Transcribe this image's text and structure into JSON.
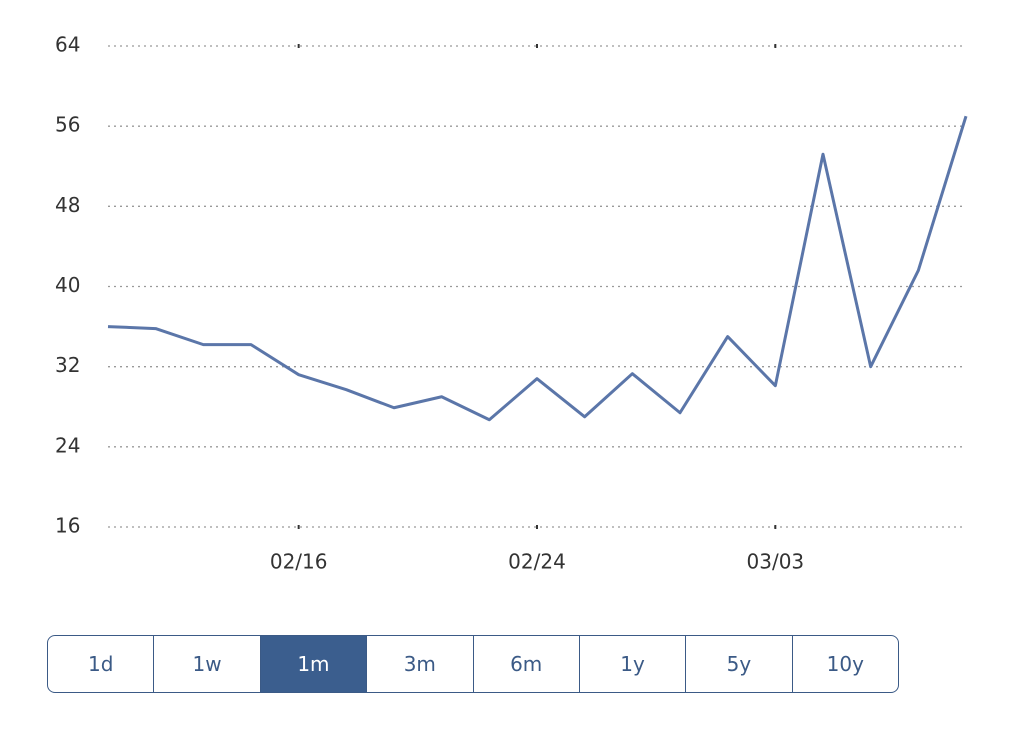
{
  "chart_data": {
    "type": "line",
    "categories": [
      null,
      null,
      null,
      null,
      "02/16",
      null,
      null,
      null,
      null,
      "02/24",
      null,
      null,
      null,
      null,
      "03/03",
      null,
      null,
      null,
      null
    ],
    "series": [
      {
        "color": "#5b76a9",
        "values": [
          36.0,
          35.8,
          34.2,
          34.2,
          31.2,
          29.7,
          27.9,
          29.0,
          26.7,
          30.8,
          27.0,
          31.3,
          27.4,
          35.0,
          30.1,
          53.2,
          32.0,
          41.6,
          57.0
        ]
      }
    ],
    "ylim": [
      16,
      64
    ],
    "yticks": [
      16,
      24,
      32,
      40,
      48,
      56,
      64
    ],
    "grid": true
  },
  "range_buttons": {
    "options": [
      "1d",
      "1w",
      "1m",
      "3m",
      "6m",
      "1y",
      "5y",
      "10y"
    ],
    "selected": 2
  }
}
